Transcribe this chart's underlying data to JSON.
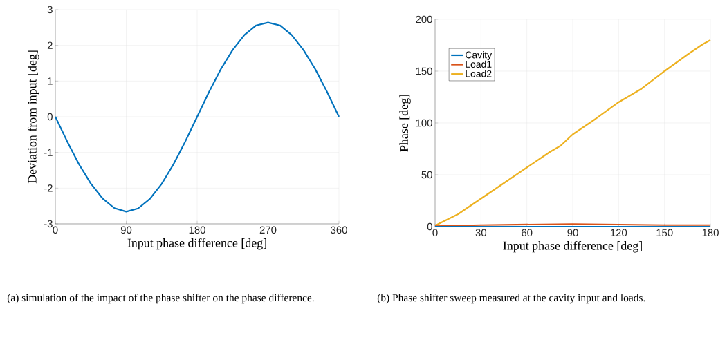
{
  "chart_data": [
    {
      "type": "line",
      "xlabel": "Input phase difference [deg]",
      "ylabel": "Deviation from input [deg]",
      "annotations": [
        "(a) simulation of the impact of the phase shifter on the phase difference."
      ],
      "xlim": [
        0,
        360
      ],
      "xticks": [
        0,
        90,
        180,
        270,
        360
      ],
      "ylim": [
        -3,
        3
      ],
      "yticks": [
        -3,
        -2,
        -1,
        0,
        1,
        2,
        3
      ],
      "grid": true,
      "legend": false,
      "series": [
        {
          "color": "#0072bd",
          "x": [
            0,
            15,
            30,
            45,
            60,
            75,
            90,
            105,
            120,
            135,
            150,
            165,
            180,
            195,
            210,
            225,
            240,
            255,
            270,
            285,
            300,
            315,
            330,
            345,
            360
          ],
          "values": [
            0,
            -0.69,
            -1.33,
            -1.87,
            -2.29,
            -2.56,
            -2.66,
            -2.57,
            -2.3,
            -1.88,
            -1.33,
            -0.69,
            0,
            0.69,
            1.33,
            1.87,
            2.29,
            2.56,
            2.64,
            2.56,
            2.29,
            1.87,
            1.33,
            0.69,
            0
          ]
        }
      ]
    },
    {
      "type": "line",
      "xlabel": "Input phase difference [deg]",
      "ylabel": "Phase [deg]",
      "annotations": [
        "(b) Phase shifter sweep measured at the cavity input and loads."
      ],
      "xlim": [
        0,
        180
      ],
      "xticks": [
        0,
        30,
        60,
        90,
        120,
        150,
        180
      ],
      "ylim": [
        0,
        200
      ],
      "yticks": [
        0,
        50,
        100,
        150,
        200
      ],
      "grid": true,
      "legend": "top left",
      "series": [
        {
          "name": "Cavity",
          "color": "#0072bd",
          "x": [
            0,
            90,
            180
          ],
          "values": [
            0,
            0,
            0
          ]
        },
        {
          "name": "Load1",
          "color": "#d95319",
          "x": [
            0,
            30,
            60,
            90,
            120,
            150,
            180
          ],
          "values": [
            0.5,
            1.5,
            2,
            2.5,
            2,
            1.5,
            1.5
          ]
        },
        {
          "name": "Load2",
          "color": "#edb120",
          "x": [
            0,
            15,
            30,
            45,
            60,
            75,
            82,
            90,
            105,
            120,
            135,
            150,
            165,
            175,
            180
          ],
          "values": [
            1,
            12,
            27,
            42,
            57,
            72,
            78,
            89,
            104,
            120,
            133,
            150,
            166,
            176,
            180
          ]
        }
      ]
    }
  ]
}
